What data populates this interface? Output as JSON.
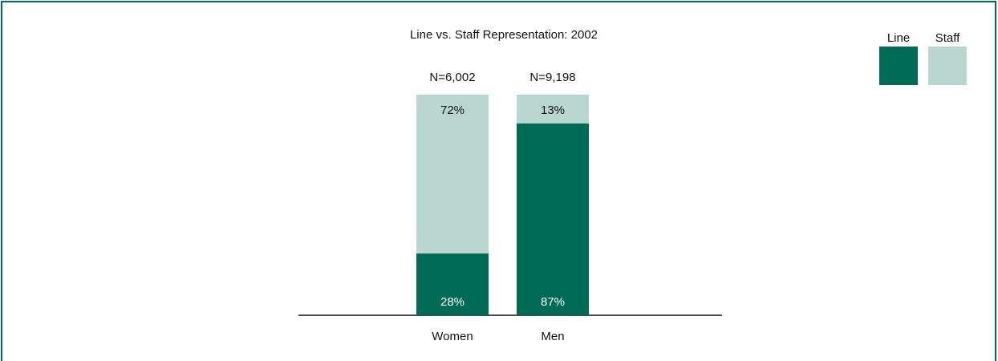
{
  "chart_data": {
    "type": "stacked-bar",
    "title": "Line vs. Staff Representation: 2002",
    "categories": [
      "Women",
      "Men"
    ],
    "annotations": [
      "N=6,002",
      "N=9,198"
    ],
    "series": [
      {
        "name": "Line",
        "color": "#006b54",
        "values": [
          28,
          87
        ],
        "value_labels": [
          "28%",
          "87%"
        ]
      },
      {
        "name": "Staff",
        "color": "#b9d7cf",
        "values": [
          72,
          13
        ],
        "value_labels": [
          "72%",
          "13%"
        ]
      }
    ],
    "ylim": [
      0,
      100
    ],
    "legend": "top-right"
  }
}
